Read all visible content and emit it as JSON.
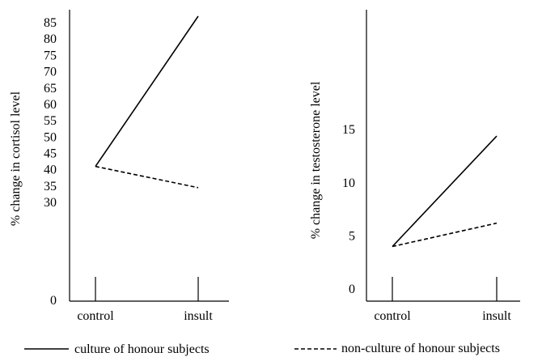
{
  "chart_data": [
    {
      "type": "line",
      "ylabel": "% change in cortisol level",
      "xlabel": "",
      "categories": [
        "control",
        "insult"
      ],
      "yticks": [
        0,
        30,
        35,
        40,
        45,
        50,
        55,
        60,
        65,
        70,
        75,
        80,
        85
      ],
      "ylim": [
        0,
        87
      ],
      "series": [
        {
          "name": "culture of honour subjects",
          "style": "solid",
          "values": [
            41,
            87
          ]
        },
        {
          "name": "non-culture of honour subjects",
          "style": "dashed",
          "values": [
            41,
            34.5
          ]
        }
      ]
    },
    {
      "type": "line",
      "ylabel": "% change in testosterone level",
      "xlabel": "",
      "categories": [
        "control",
        "insult"
      ],
      "yticks": [
        0,
        5,
        10,
        15
      ],
      "ylim": [
        0,
        17.5
      ],
      "series": [
        {
          "name": "culture of honour subjects",
          "style": "solid",
          "values": [
            4,
            14.4
          ]
        },
        {
          "name": "non-culture of honour subjects",
          "style": "dashed",
          "values": [
            4,
            6.2
          ]
        }
      ]
    }
  ],
  "legend": {
    "solid_label": "culture of honour subjects",
    "dashed_label": "non-culture of honour subjects"
  },
  "colors": {
    "line": "#000000",
    "background": "#ffffff"
  }
}
